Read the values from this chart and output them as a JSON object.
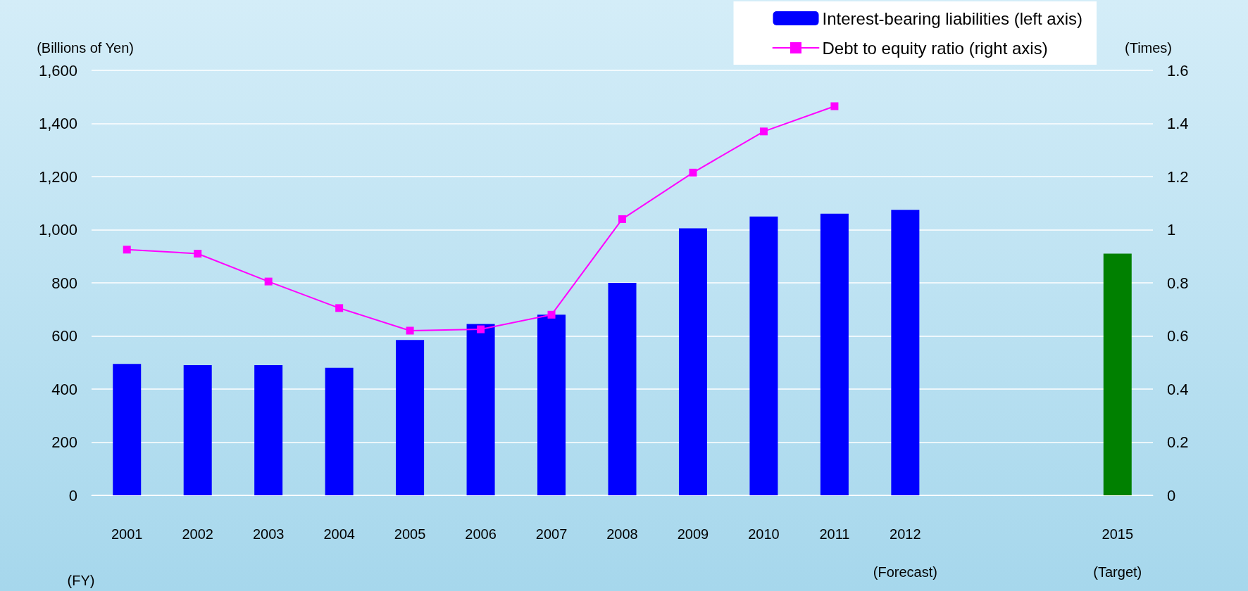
{
  "chart_data": {
    "type": "bar",
    "xlabel": "(FY)",
    "ylabel": "(Billions of Yen)",
    "y2label": "(Times)",
    "categories": [
      "2001",
      "2002",
      "2003",
      "2004",
      "2005",
      "2006",
      "2007",
      "2008",
      "2009",
      "2010",
      "2011",
      "2012\n(Forecast)",
      null,
      null,
      "2015\n(Target)"
    ],
    "series": [
      {
        "name": "Interest-bearing liabilities (left axis)",
        "color": "#0000ff",
        "colors": [
          "#0000ff",
          "#0000ff",
          "#0000ff",
          "#0000ff",
          "#0000ff",
          "#0000ff",
          "#0000ff",
          "#0000ff",
          "#0000ff",
          "#0000ff",
          "#0000ff",
          "#0000ff",
          null,
          null,
          "#008000"
        ],
        "values": [
          495,
          490,
          490,
          480,
          585,
          645,
          680,
          800,
          1005,
          1050,
          1060,
          1075,
          null,
          null,
          910
        ]
      },
      {
        "name": "Debt to equity ratio (right axis)",
        "type": "line",
        "axis": "y2",
        "color": "#ff00ff",
        "marker": "square",
        "line_style": "solid",
        "values": [
          0.925,
          0.91,
          0.805,
          0.705,
          0.62,
          0.625,
          0.68,
          1.04,
          1.215,
          1.37,
          1.465,
          null,
          null,
          null,
          null
        ]
      }
    ],
    "ylim": [
      0,
      1600
    ],
    "yticks": [
      0,
      200,
      400,
      600,
      800,
      {
        "value": 1000,
        "label": "1,000"
      },
      {
        "value": 1200,
        "label": "1,200"
      },
      {
        "value": 1400,
        "label": "1,400"
      },
      {
        "value": 1600,
        "label": "1,600"
      }
    ],
    "y2lim": [
      0,
      1.6
    ],
    "y2ticks": [
      0,
      0.2,
      0.4,
      0.6,
      0.8,
      1,
      1.2,
      1.4,
      1.6
    ],
    "grid": "y",
    "legend": "top right"
  }
}
